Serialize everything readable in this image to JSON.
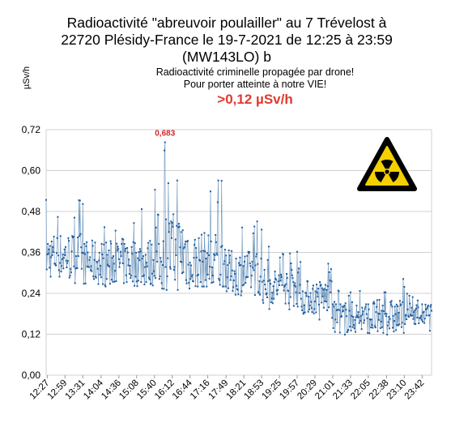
{
  "chart_data": {
    "type": "line",
    "title_lines": [
      "Radioactivité \"abreuvoir poulailler\" au 7 Trévelost à",
      "22720 Plésidy-France le 19-7-2021 de 12:25 à 23:59",
      "(MW143LO) b"
    ],
    "subtitle_lines": [
      "Radioactivité criminelle propagée par drone!",
      "Pour porter atteinte à notre VIE!"
    ],
    "alert": ">0,12 µSv/h",
    "ylabel": "µSv/h",
    "ylim": [
      0,
      0.72
    ],
    "yticks": [
      "0,00",
      "0,12",
      "0,24",
      "0,36",
      "0,48",
      "0,60",
      "0,72"
    ],
    "xticks": [
      "12:27",
      "12:59",
      "13:31",
      "14:04",
      "14:36",
      "15:08",
      "15:40",
      "16:12",
      "16:44",
      "17:16",
      "17:49",
      "18:21",
      "18:53",
      "19:25",
      "19:57",
      "20:29",
      "21:01",
      "21:33",
      "22:05",
      "22:38",
      "23:10",
      "23:42"
    ],
    "peak": {
      "label": "0,683",
      "value": 0.683,
      "time": "15:59"
    },
    "legend": "none",
    "grid": true,
    "colors": {
      "line": "#4e7fae",
      "marker": "#1f5da0",
      "peak_label": "#d62728",
      "alert": "#e03a30",
      "grid": "#d0d0d0"
    },
    "icon": "radiation-warning-icon",
    "segments": [
      {
        "from": "12:25",
        "to": "13:31",
        "min": 0.27,
        "max": 0.52,
        "mean": 0.35
      },
      {
        "from": "13:31",
        "to": "14:36",
        "min": 0.26,
        "max": 0.5,
        "mean": 0.33
      },
      {
        "from": "14:36",
        "to": "15:40",
        "min": 0.26,
        "max": 0.52,
        "mean": 0.33
      },
      {
        "from": "15:40",
        "to": "16:44",
        "min": 0.25,
        "max": 0.683,
        "mean": 0.36
      },
      {
        "from": "16:44",
        "to": "17:49",
        "min": 0.26,
        "max": 0.59,
        "mean": 0.33
      },
      {
        "from": "17:49",
        "to": "18:53",
        "min": 0.23,
        "max": 0.47,
        "mean": 0.3
      },
      {
        "from": "18:53",
        "to": "19:57",
        "min": 0.19,
        "max": 0.38,
        "mean": 0.26
      },
      {
        "from": "19:57",
        "to": "21:01",
        "min": 0.16,
        "max": 0.34,
        "mean": 0.23
      },
      {
        "from": "21:01",
        "to": "22:05",
        "min": 0.1,
        "max": 0.27,
        "mean": 0.17
      },
      {
        "from": "22:05",
        "to": "23:10",
        "min": 0.1,
        "max": 0.29,
        "mean": 0.17
      },
      {
        "from": "23:10",
        "to": "23:59",
        "min": 0.13,
        "max": 0.24,
        "mean": 0.18
      }
    ]
  }
}
